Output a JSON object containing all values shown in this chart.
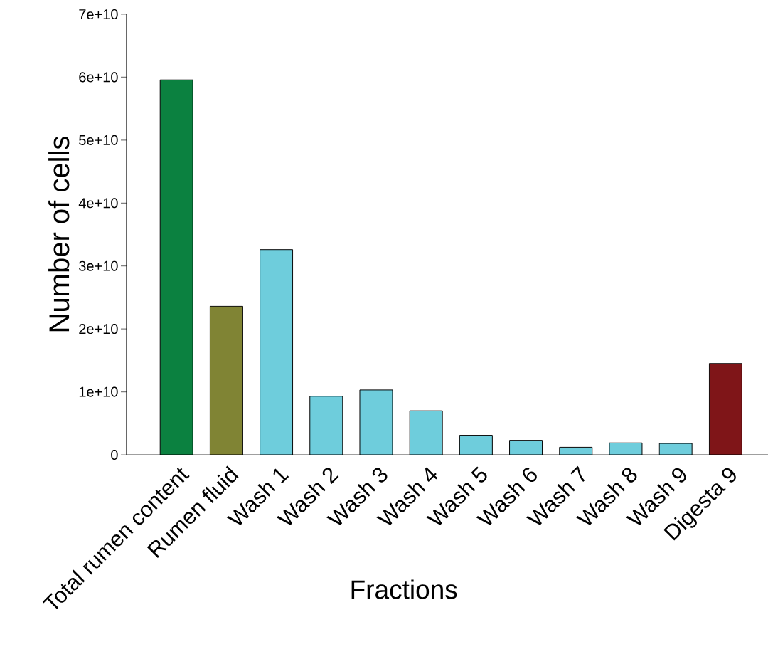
{
  "chart_data": {
    "type": "bar",
    "xlabel": "Fractions",
    "ylabel": "Number of cells",
    "categories": [
      "Total rumen content",
      "Rumen fluid",
      "Wash 1",
      "Wash 2",
      "Wash 3",
      "Wash 4",
      "Wash 5",
      "Wash 6",
      "Wash 7",
      "Wash 8",
      "Wash 9",
      "Digesta 9"
    ],
    "values": [
      59600000000.0,
      23600000000.0,
      32600000000.0,
      9300000000.0,
      10300000000.0,
      7000000000.0,
      3100000000.0,
      2300000000.0,
      1200000000.0,
      1900000000.0,
      1800000000.0,
      14500000000.0
    ],
    "colors": [
      "#0b8140",
      "#808434",
      "#6ecddc",
      "#6ecddc",
      "#6ecddc",
      "#6ecddc",
      "#6ecddc",
      "#6ecddc",
      "#6ecddc",
      "#6ecddc",
      "#6ecddc",
      "#7f1518"
    ],
    "ylim": [
      0,
      70000000000
    ],
    "yticks": [
      0,
      {
        "value": 10000000000,
        "label": "1e+10"
      },
      {
        "value": 20000000000,
        "label": "2e+10"
      },
      {
        "value": 30000000000,
        "label": "3e+10"
      },
      {
        "value": 40000000000,
        "label": "4e+10"
      },
      {
        "value": 50000000000,
        "label": "5e+10"
      },
      {
        "value": 60000000000,
        "label": "6e+10"
      },
      {
        "value": 70000000000,
        "label": "7e+10"
      }
    ],
    "grid": false
  }
}
